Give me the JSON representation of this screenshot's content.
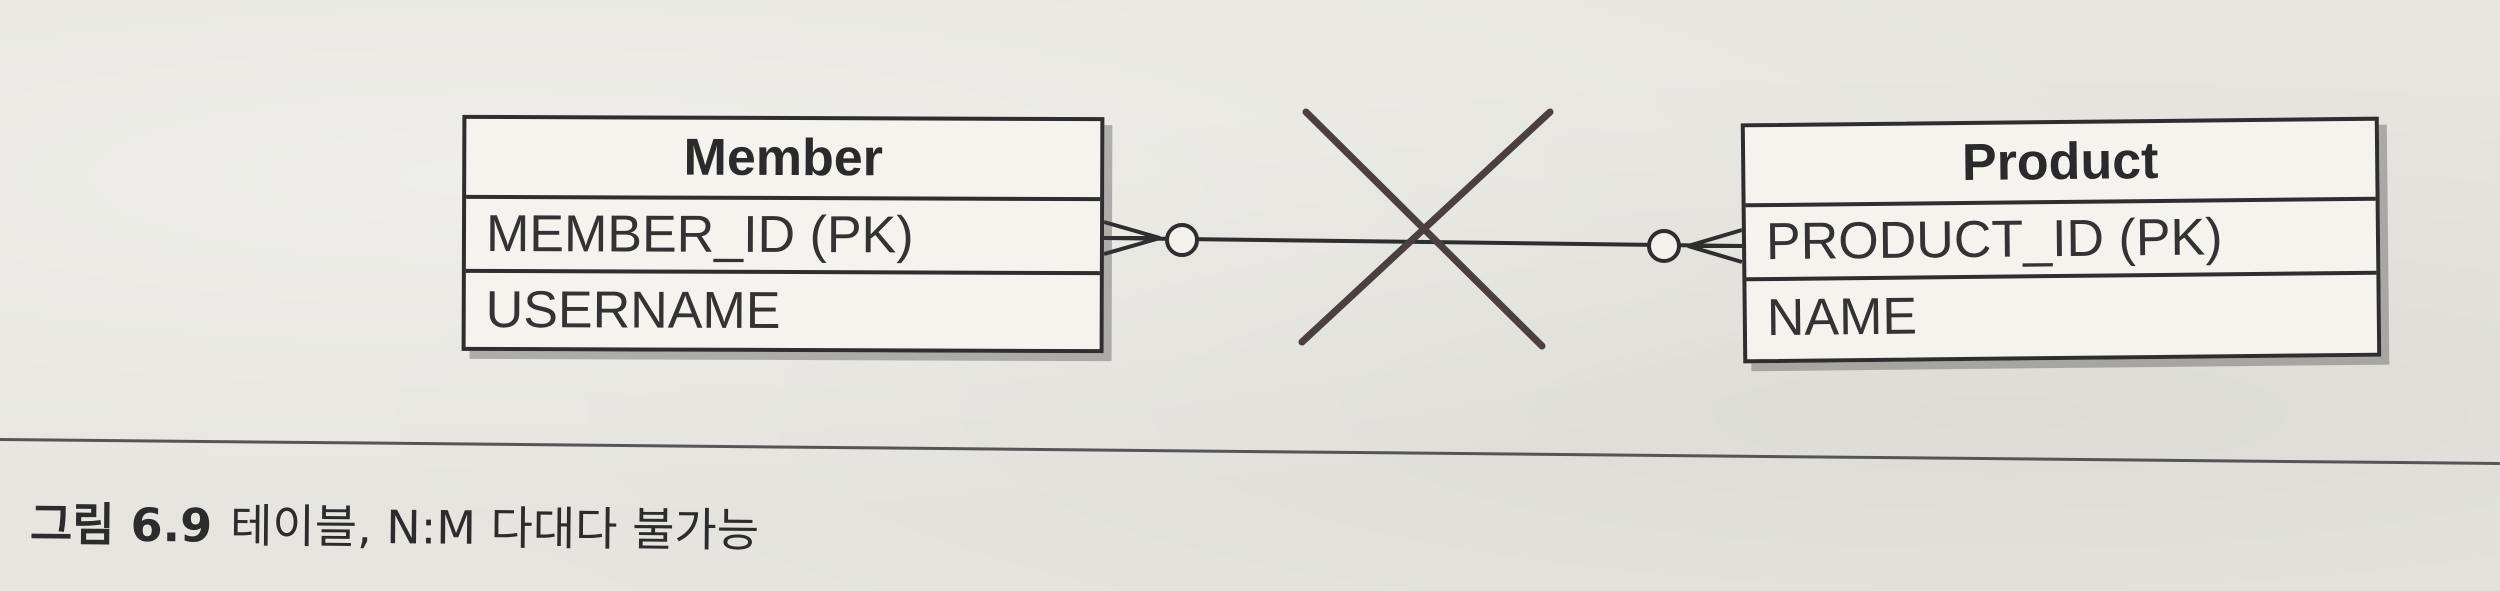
{
  "diagram": {
    "entities": [
      {
        "id": "member",
        "name": "Member",
        "attributes": [
          "MEMBER_ID (PK)",
          "USERNAME"
        ]
      },
      {
        "id": "product",
        "name": "Product",
        "attributes": [
          "PRODUCT_ID (PK)",
          "NAME"
        ]
      }
    ],
    "relationship": {
      "from": "Member",
      "to": "Product",
      "cardinality": "N:M",
      "crossed_out": true
    }
  },
  "caption": {
    "number": "그림 6.9",
    "text": "테이블, N:M 다대다 불가능"
  },
  "colors": {
    "background": "#e6e5df",
    "line": "#2e2e2e",
    "cross": "#4a4040"
  }
}
